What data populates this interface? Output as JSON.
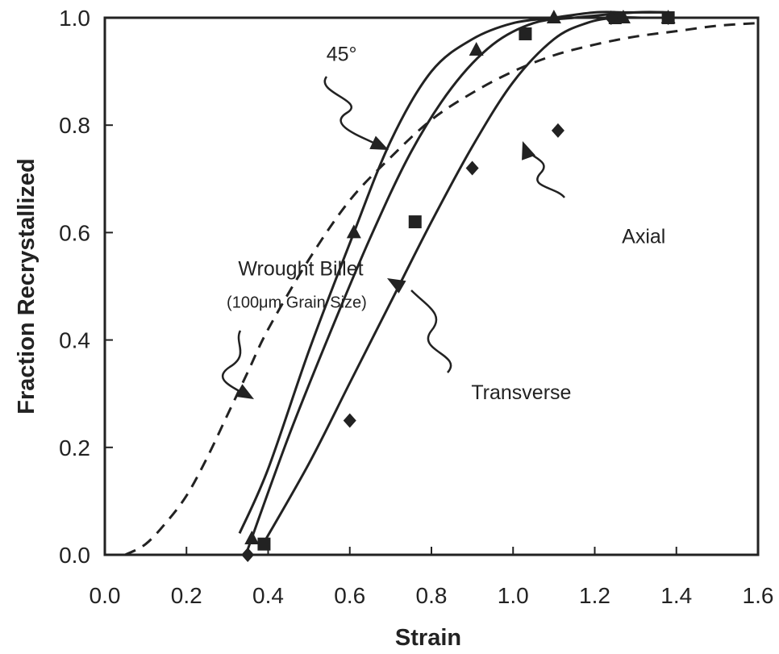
{
  "chart_data": {
    "type": "line",
    "xlabel": "Strain",
    "ylabel": "Fraction Recrystallized",
    "xlim": [
      0.0,
      1.6
    ],
    "ylim": [
      0.0,
      1.0
    ],
    "xticks": [
      "0.0",
      "0.2",
      "0.4",
      "0.6",
      "0.8",
      "1.0",
      "1.2",
      "1.4",
      "1.6"
    ],
    "yticks": [
      "0.0",
      "0.2",
      "0.4",
      "0.6",
      "0.8",
      "1.0"
    ],
    "grid": false,
    "series": [
      {
        "name": "45°",
        "marker": "triangle",
        "line": "solid",
        "curve": [
          [
            0.33,
            0.04
          ],
          [
            0.4,
            0.16
          ],
          [
            0.5,
            0.38
          ],
          [
            0.6,
            0.58
          ],
          [
            0.7,
            0.77
          ],
          [
            0.8,
            0.9
          ],
          [
            0.9,
            0.96
          ],
          [
            1.0,
            0.99
          ],
          [
            1.1,
            1.0
          ],
          [
            1.2,
            1.01
          ],
          [
            1.28,
            1.01
          ],
          [
            1.38,
            1.01
          ]
        ],
        "points": [
          [
            0.36,
            0.03
          ],
          [
            0.61,
            0.6
          ],
          [
            0.91,
            0.94
          ],
          [
            1.1,
            1.0
          ],
          [
            1.27,
            1.0
          ],
          [
            1.38,
            1.0
          ]
        ]
      },
      {
        "name": "Transverse",
        "marker": "square",
        "line": "solid",
        "curve": [
          [
            0.35,
            0.01
          ],
          [
            0.45,
            0.22
          ],
          [
            0.55,
            0.41
          ],
          [
            0.65,
            0.59
          ],
          [
            0.75,
            0.75
          ],
          [
            0.85,
            0.87
          ],
          [
            0.95,
            0.95
          ],
          [
            1.05,
            0.99
          ],
          [
            1.15,
            1.0
          ],
          [
            1.3,
            1.01
          ],
          [
            1.38,
            1.01
          ]
        ],
        "points": [
          [
            0.39,
            0.02
          ],
          [
            0.76,
            0.62
          ],
          [
            1.03,
            0.97
          ],
          [
            1.25,
            1.0
          ],
          [
            1.38,
            1.0
          ]
        ]
      },
      {
        "name": "Axial",
        "marker": "diamond",
        "line": "solid",
        "curve": [
          [
            0.38,
            0.01
          ],
          [
            0.5,
            0.17
          ],
          [
            0.6,
            0.32
          ],
          [
            0.7,
            0.47
          ],
          [
            0.8,
            0.62
          ],
          [
            0.9,
            0.76
          ],
          [
            1.0,
            0.88
          ],
          [
            1.1,
            0.96
          ],
          [
            1.18,
            0.99
          ],
          [
            1.25,
            1.0
          ],
          [
            1.32,
            1.0
          ],
          [
            1.38,
            1.0
          ]
        ],
        "points": [
          [
            0.35,
            0.0
          ],
          [
            0.6,
            0.25
          ],
          [
            0.9,
            0.72
          ],
          [
            1.11,
            0.79
          ],
          [
            1.24,
            1.0
          ],
          [
            1.38,
            1.0
          ]
        ]
      },
      {
        "name": "Wrought Billet",
        "marker": "none",
        "line": "dashed",
        "curve": [
          [
            0.05,
            0.0
          ],
          [
            0.1,
            0.02
          ],
          [
            0.15,
            0.06
          ],
          [
            0.2,
            0.11
          ],
          [
            0.25,
            0.18
          ],
          [
            0.3,
            0.26
          ],
          [
            0.35,
            0.34
          ],
          [
            0.4,
            0.42
          ],
          [
            0.5,
            0.55
          ],
          [
            0.6,
            0.66
          ],
          [
            0.7,
            0.74
          ],
          [
            0.8,
            0.81
          ],
          [
            0.9,
            0.86
          ],
          [
            1.0,
            0.9
          ],
          [
            1.1,
            0.93
          ],
          [
            1.2,
            0.95
          ],
          [
            1.3,
            0.965
          ],
          [
            1.4,
            0.975
          ],
          [
            1.5,
            0.985
          ],
          [
            1.6,
            0.99
          ]
        ],
        "points": []
      }
    ],
    "annotations": [
      {
        "text": "45°",
        "x": 0.58,
        "y": 0.92
      },
      {
        "text": "Axial",
        "x": 1.32,
        "y": 0.58
      },
      {
        "text": "Wrought Billet",
        "x": 0.48,
        "y": 0.52
      },
      {
        "text": "(100μm Grain Size)",
        "x": 0.47,
        "y": 0.46
      },
      {
        "text": "Transverse",
        "x": 1.02,
        "y": 0.29
      }
    ]
  }
}
